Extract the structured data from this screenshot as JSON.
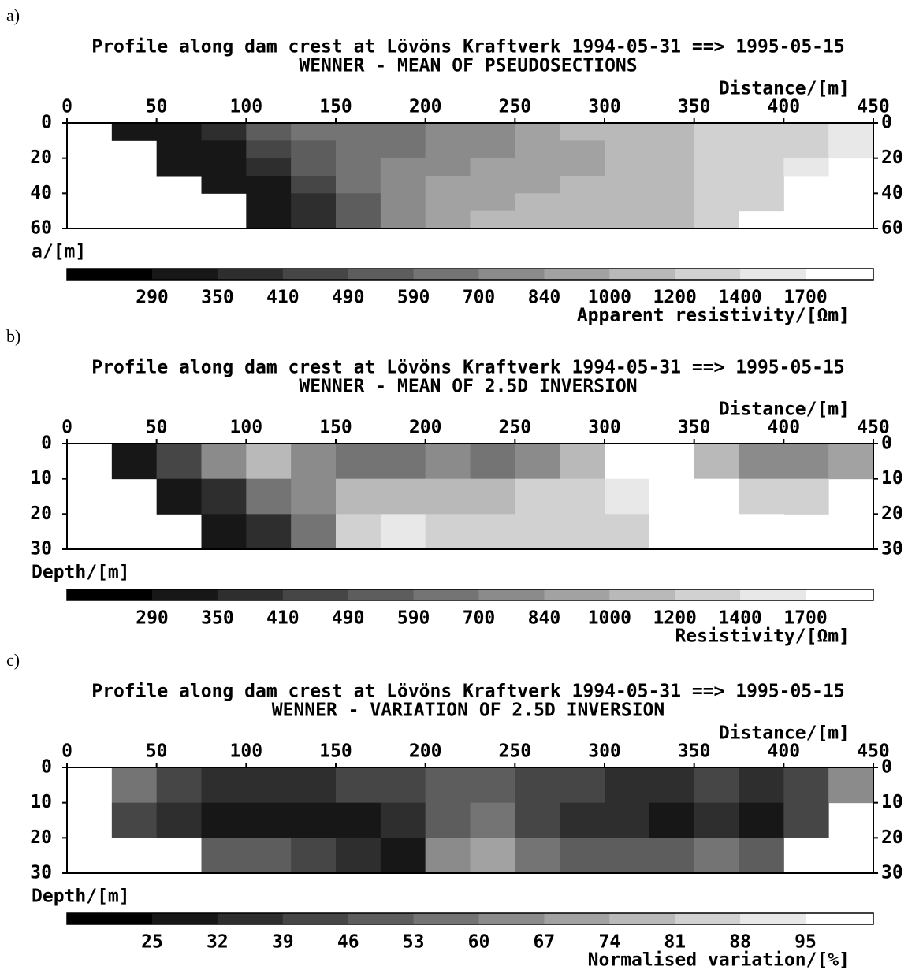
{
  "chart_data": [
    {
      "type": "heatmap",
      "panel_label": "a)",
      "title": "Profile along dam crest at Lövöns Kraftverk 1994-05-31 ==> 1995-05-15",
      "subtitle": "WENNER - MEAN OF PSEUDOSECTIONS",
      "xlabel": "Distance/[m]",
      "ylabel": "a/[m]",
      "xlim": [
        0,
        450
      ],
      "xticks": [
        0,
        50,
        100,
        150,
        200,
        250,
        300,
        350,
        400,
        450
      ],
      "ylim": [
        60,
        0
      ],
      "yticks": [
        0,
        20,
        40,
        60
      ],
      "x": [
        12.5,
        37.5,
        62.5,
        87.5,
        112.5,
        137.5,
        162.5,
        187.5,
        212.5,
        237.5,
        262.5,
        287.5,
        312.5,
        337.5,
        362.5,
        387.5,
        412.5,
        437.5
      ],
      "y": [
        5,
        15,
        25,
        35,
        45,
        55
      ],
      "grid": [
        [
          null,
          290,
          290,
          350,
          490,
          590,
          590,
          590,
          700,
          700,
          840,
          1000,
          1000,
          1000,
          1200,
          1200,
          1200,
          1400
        ],
        [
          null,
          null,
          290,
          290,
          410,
          490,
          590,
          590,
          700,
          700,
          840,
          840,
          1000,
          1000,
          1200,
          1200,
          1200,
          1400
        ],
        [
          null,
          null,
          290,
          290,
          350,
          490,
          590,
          700,
          700,
          840,
          840,
          840,
          1000,
          1000,
          1200,
          1200,
          1400,
          null
        ],
        [
          null,
          null,
          null,
          290,
          290,
          410,
          590,
          700,
          840,
          840,
          840,
          1000,
          1000,
          1000,
          1200,
          1200,
          null,
          null
        ],
        [
          null,
          null,
          null,
          null,
          290,
          350,
          490,
          700,
          840,
          840,
          1000,
          1000,
          1000,
          1000,
          1200,
          1200,
          null,
          null
        ],
        [
          null,
          null,
          null,
          null,
          290,
          350,
          490,
          700,
          840,
          1000,
          1000,
          1000,
          1000,
          1000,
          1200,
          null,
          null,
          null
        ]
      ],
      "colorbar": {
        "ticks": [
          290,
          350,
          410,
          490,
          590,
          700,
          840,
          1000,
          1200,
          1400,
          1700
        ],
        "label": "Apparent resistivity/[Ωm]"
      }
    },
    {
      "type": "heatmap",
      "panel_label": "b)",
      "title": "Profile along dam crest at Lövöns Kraftverk 1994-05-31 ==> 1995-05-15",
      "subtitle": "WENNER - MEAN OF 2.5D INVERSION",
      "xlabel": "Distance/[m]",
      "ylabel": "Depth/[m]",
      "xlim": [
        0,
        450
      ],
      "xticks": [
        0,
        50,
        100,
        150,
        200,
        250,
        300,
        350,
        400,
        450
      ],
      "ylim": [
        30,
        0
      ],
      "yticks": [
        0,
        10,
        20,
        30
      ],
      "x": [
        12.5,
        37.5,
        62.5,
        87.5,
        112.5,
        137.5,
        162.5,
        187.5,
        212.5,
        237.5,
        262.5,
        287.5,
        312.5,
        337.5,
        362.5,
        387.5,
        412.5,
        437.5
      ],
      "y": [
        5,
        15,
        25
      ],
      "grid": [
        [
          null,
          290,
          410,
          700,
          1000,
          700,
          590,
          590,
          700,
          590,
          700,
          1000,
          1700,
          1700,
          1000,
          700,
          700,
          840
        ],
        [
          null,
          null,
          290,
          350,
          590,
          700,
          1000,
          1000,
          1000,
          1000,
          1200,
          1200,
          1400,
          1700,
          1700,
          1200,
          1200,
          null
        ],
        [
          null,
          null,
          null,
          290,
          350,
          590,
          1200,
          1400,
          1200,
          1200,
          1200,
          1200,
          1200,
          1700,
          1700,
          1700,
          null,
          null
        ]
      ],
      "colorbar": {
        "ticks": [
          290,
          350,
          410,
          490,
          590,
          700,
          840,
          1000,
          1200,
          1400,
          1700
        ],
        "label": "Resistivity/[Ωm]"
      }
    },
    {
      "type": "heatmap",
      "panel_label": "c)",
      "title": "Profile along dam crest at Lövöns Kraftverk 1994-05-31 ==> 1995-05-15",
      "subtitle": "WENNER - VARIATION OF 2.5D INVERSION",
      "xlabel": "Distance/[m]",
      "ylabel": "Depth/[m]",
      "xlim": [
        0,
        450
      ],
      "xticks": [
        0,
        50,
        100,
        150,
        200,
        250,
        300,
        350,
        400,
        450
      ],
      "ylim": [
        30,
        0
      ],
      "yticks": [
        0,
        10,
        20,
        30
      ],
      "x": [
        12.5,
        37.5,
        62.5,
        87.5,
        112.5,
        137.5,
        162.5,
        187.5,
        212.5,
        237.5,
        262.5,
        287.5,
        312.5,
        337.5,
        362.5,
        387.5,
        412.5,
        437.5
      ],
      "y": [
        5,
        15,
        25
      ],
      "grid": [
        [
          null,
          53,
          39,
          32,
          32,
          32,
          39,
          39,
          46,
          46,
          39,
          39,
          32,
          32,
          39,
          32,
          39,
          60
        ],
        [
          null,
          39,
          32,
          25,
          25,
          25,
          25,
          32,
          46,
          53,
          39,
          32,
          32,
          25,
          32,
          25,
          39,
          null
        ],
        [
          null,
          null,
          null,
          46,
          46,
          39,
          32,
          25,
          60,
          67,
          53,
          46,
          46,
          46,
          53,
          46,
          null,
          null
        ]
      ],
      "colorbar": {
        "ticks": [
          25,
          32,
          39,
          46,
          53,
          60,
          67,
          74,
          81,
          88,
          95
        ],
        "label": "Normalised variation/[%]"
      }
    }
  ]
}
